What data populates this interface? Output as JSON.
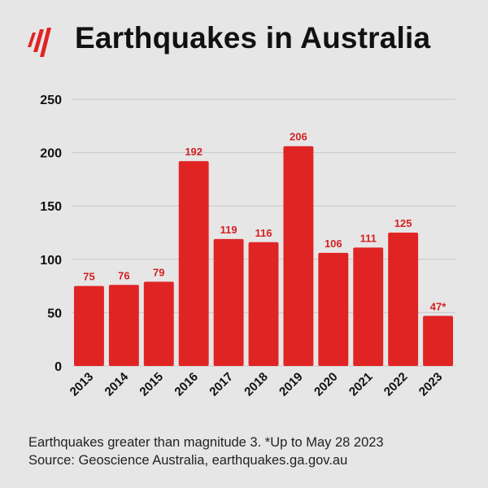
{
  "title": "Earthquakes in Australia",
  "logo": "sbs-logo",
  "colors": {
    "bar": "#e02424",
    "label": "#d42020",
    "background": "#e6e6e6",
    "text": "#111111",
    "grid": "#c8c8c8"
  },
  "footer": {
    "line1": "Earthquakes greater than magnitude 3.  *Up to May 28 2023",
    "line2": "Source: Geoscience Australia, earthquakes.ga.gov.au"
  },
  "chart_data": {
    "type": "bar",
    "title": "Earthquakes in Australia",
    "categories": [
      "2013",
      "2014",
      "2015",
      "2016",
      "2017",
      "2018",
      "2019",
      "2020",
      "2021",
      "2022",
      "2023"
    ],
    "values": [
      75,
      76,
      79,
      192,
      119,
      116,
      206,
      106,
      111,
      125,
      47
    ],
    "data_labels": [
      "75",
      "76",
      "79",
      "192",
      "119",
      "116",
      "206",
      "106",
      "111",
      "125",
      "47*"
    ],
    "ylim": [
      0,
      250
    ],
    "yticks": [
      0,
      50,
      100,
      150,
      200,
      250
    ],
    "xlabel": "",
    "ylabel": "",
    "grid": true,
    "legend": "none"
  }
}
